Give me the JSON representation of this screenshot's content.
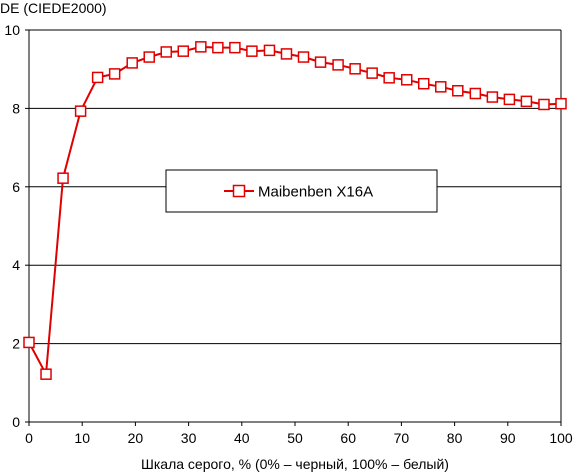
{
  "chart_data": {
    "type": "line",
    "title": "",
    "ylabel": "DE (CIEDE2000)",
    "xlabel": "Шкала серого, % (0% – черный, 100% – белый)",
    "xlim": [
      0,
      100
    ],
    "ylim": [
      0,
      10
    ],
    "xticks": [
      0,
      10,
      20,
      30,
      40,
      50,
      60,
      70,
      80,
      90,
      100
    ],
    "yticks": [
      0,
      2,
      4,
      6,
      8,
      10
    ],
    "grid": "horizontal",
    "legend_position": "center",
    "series": [
      {
        "name": "Maibenben X16A",
        "color": "#e00000",
        "marker": "open-square",
        "x": [
          0,
          3.2,
          6.4,
          9.7,
          12.9,
          16.1,
          19.4,
          22.6,
          25.8,
          29.0,
          32.3,
          35.5,
          38.7,
          41.9,
          45.2,
          48.4,
          51.6,
          54.8,
          58.1,
          61.3,
          64.5,
          67.7,
          71.0,
          74.2,
          77.4,
          80.6,
          83.9,
          87.1,
          90.3,
          93.5,
          96.8,
          100
        ],
        "y": [
          2.03,
          1.22,
          6.22,
          7.93,
          8.79,
          8.88,
          9.16,
          9.31,
          9.44,
          9.46,
          9.57,
          9.55,
          9.55,
          9.46,
          9.48,
          9.39,
          9.31,
          9.18,
          9.11,
          9.01,
          8.9,
          8.78,
          8.73,
          8.63,
          8.55,
          8.45,
          8.38,
          8.29,
          8.23,
          8.18,
          8.1,
          8.12
        ]
      }
    ]
  }
}
